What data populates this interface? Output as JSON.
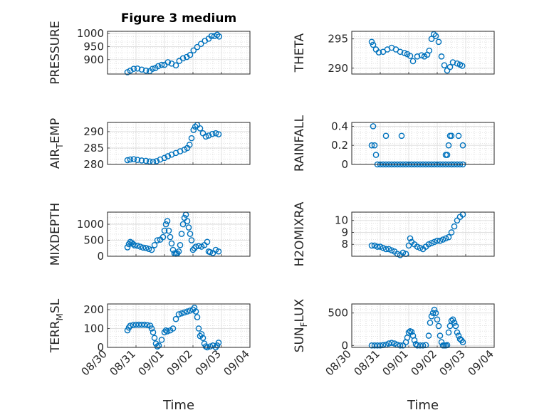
{
  "figure": {
    "title": "Figure 3 medium",
    "xlabel": "Time"
  },
  "x_ticks": [
    "08/30",
    "08/31",
    "09/01",
    "09/02",
    "09/03",
    "09/04"
  ],
  "colors": {
    "marker": "#0072bd",
    "axis": "#262626",
    "grid": "#d9d9d9"
  },
  "chart_data": [
    {
      "type": "scatter",
      "ylabel": "PRESSURE",
      "ylabel_sub": "",
      "yticks": [
        900,
        950,
        1000
      ],
      "ylim": [
        845,
        1008
      ],
      "xlim": [
        0,
        5
      ],
      "grid": "on",
      "minor_grid": "on",
      "x": [
        0.7,
        0.8,
        0.92,
        1.05,
        1.2,
        1.35,
        1.48,
        1.58,
        1.68,
        1.78,
        1.9,
        2.0,
        2.12,
        2.25,
        2.4,
        2.52,
        2.65,
        2.78,
        2.9,
        3.02,
        3.15,
        3.28,
        3.42,
        3.55,
        3.65,
        3.75,
        3.85,
        3.92
      ],
      "y": [
        852,
        858,
        865,
        866,
        862,
        858,
        856,
        865,
        868,
        875,
        880,
        880,
        890,
        885,
        878,
        895,
        905,
        910,
        918,
        935,
        948,
        960,
        972,
        980,
        990,
        990,
        995,
        988
      ]
    },
    {
      "type": "scatter",
      "ylabel": "THETA",
      "ylabel_sub": "",
      "yticks": [
        290,
        295
      ],
      "ylim": [
        289,
        296.3
      ],
      "xlim": [
        0,
        5
      ],
      "grid": "on",
      "minor_grid": "on",
      "x": [
        0.7,
        0.75,
        0.85,
        0.95,
        1.1,
        1.25,
        1.4,
        1.55,
        1.7,
        1.85,
        1.95,
        2.05,
        2.15,
        2.3,
        2.45,
        2.55,
        2.65,
        2.72,
        2.8,
        2.88,
        2.95,
        3.05,
        3.15,
        3.25,
        3.35,
        3.45,
        3.55,
        3.7,
        3.8,
        3.88
      ],
      "y": [
        294.5,
        294.0,
        293.2,
        292.7,
        292.8,
        293.2,
        293.5,
        293.2,
        292.8,
        292.6,
        292.4,
        292.1,
        291.2,
        292.0,
        292.2,
        292.0,
        292.3,
        293.0,
        295.0,
        295.8,
        295.5,
        294.5,
        292.0,
        290.5,
        289.6,
        290.2,
        291.0,
        290.8,
        290.6,
        290.4
      ]
    },
    {
      "type": "scatter",
      "ylabel": "AIR",
      "ylabel_sub": "T",
      "ylabel_rest": "EMP",
      "yticks": [
        280,
        285,
        290
      ],
      "ylim": [
        280,
        292.8
      ],
      "xlim": [
        0,
        5
      ],
      "grid": "on",
      "minor_grid": "on",
      "x": [
        0.7,
        0.8,
        0.92,
        1.05,
        1.2,
        1.35,
        1.48,
        1.6,
        1.72,
        1.85,
        2.0,
        2.12,
        2.25,
        2.4,
        2.55,
        2.7,
        2.8,
        2.88,
        2.95,
        3.02,
        3.08,
        3.15,
        3.25,
        3.35,
        3.45,
        3.55,
        3.68,
        3.8,
        3.9
      ],
      "y": [
        281.3,
        281.5,
        281.6,
        281.4,
        281.2,
        281.1,
        280.9,
        280.8,
        281.0,
        281.5,
        282.0,
        282.5,
        283.0,
        283.5,
        284.0,
        284.5,
        285.0,
        286.0,
        288.0,
        290.5,
        291.5,
        292.0,
        291.0,
        289.5,
        288.5,
        288.8,
        289.3,
        289.5,
        289.2
      ]
    },
    {
      "type": "scatter",
      "ylabel": "RAINFALL",
      "ylabel_sub": "",
      "yticks": [
        0,
        0.2,
        0.4
      ],
      "ylim": [
        0,
        0.44
      ],
      "xlim": [
        0,
        5
      ],
      "grid": "on",
      "minor_grid": "on",
      "x": [
        0.7,
        0.75,
        0.8,
        0.85,
        0.9,
        1.0,
        1.1,
        1.2,
        1.3,
        1.4,
        1.5,
        1.6,
        1.7,
        1.8,
        1.9,
        2.0,
        2.1,
        2.2,
        2.3,
        2.4,
        2.5,
        2.6,
        2.7,
        2.8,
        2.9,
        3.0,
        3.1,
        3.2,
        3.3,
        3.4,
        3.5,
        3.6,
        3.7,
        3.8,
        3.9,
        3.35,
        3.4,
        3.45,
        3.5,
        1.2,
        1.75,
        3.75,
        3.9,
        3.3
      ],
      "y": [
        0.2,
        0.4,
        0.2,
        0.1,
        0,
        0,
        0,
        0,
        0,
        0,
        0,
        0,
        0,
        0,
        0,
        0,
        0,
        0,
        0,
        0,
        0,
        0,
        0,
        0,
        0,
        0,
        0,
        0,
        0,
        0,
        0,
        0,
        0,
        0,
        0,
        0.1,
        0.2,
        0.3,
        0.3,
        0.3,
        0.3,
        0.3,
        0.2,
        0.1
      ]
    },
    {
      "type": "scatter",
      "ylabel": "MIXDEPTH",
      "ylabel_sub": "",
      "yticks": [
        0,
        500,
        1000
      ],
      "ylim": [
        0,
        1380
      ],
      "xlim": [
        0,
        5
      ],
      "grid": "on",
      "minor_grid": "on",
      "x": [
        0.7,
        0.75,
        0.8,
        0.85,
        0.9,
        0.95,
        1.05,
        1.15,
        1.25,
        1.35,
        1.45,
        1.55,
        1.65,
        1.75,
        1.85,
        1.95,
        2.0,
        2.05,
        2.1,
        2.15,
        2.2,
        2.25,
        2.3,
        2.35,
        2.4,
        2.45,
        2.5,
        2.55,
        2.6,
        2.65,
        2.7,
        2.75,
        2.8,
        2.85,
        2.9,
        2.95,
        3.0,
        3.05,
        3.1,
        3.2,
        3.3,
        3.4,
        3.5,
        3.55,
        3.6,
        3.7,
        3.8,
        3.9
      ],
      "y": [
        280,
        380,
        450,
        420,
        380,
        340,
        330,
        300,
        270,
        260,
        230,
        200,
        350,
        500,
        520,
        600,
        800,
        1000,
        1100,
        800,
        600,
        400,
        200,
        90,
        80,
        90,
        150,
        350,
        700,
        1000,
        1200,
        1300,
        1100,
        900,
        700,
        500,
        200,
        250,
        300,
        320,
        300,
        350,
        450,
        150,
        130,
        100,
        200,
        150
      ]
    },
    {
      "type": "scatter",
      "ylabel": "H2OMIXRA",
      "ylabel_sub": "",
      "yticks": [
        8,
        9,
        10
      ],
      "ylim": [
        7.0,
        10.7
      ],
      "xlim": [
        0,
        5
      ],
      "grid": "on",
      "minor_grid": "on",
      "x": [
        0.7,
        0.8,
        0.9,
        1.0,
        1.1,
        1.2,
        1.3,
        1.4,
        1.5,
        1.6,
        1.7,
        1.8,
        1.9,
        2.0,
        2.05,
        2.1,
        2.2,
        2.3,
        2.4,
        2.5,
        2.6,
        2.7,
        2.8,
        2.9,
        3.0,
        3.1,
        3.2,
        3.3,
        3.4,
        3.5,
        3.6,
        3.7,
        3.8,
        3.9
      ],
      "y": [
        7.9,
        7.9,
        7.8,
        7.8,
        7.7,
        7.6,
        7.6,
        7.5,
        7.4,
        7.2,
        7.1,
        7.3,
        7.2,
        7.9,
        8.5,
        8.2,
        8.0,
        7.8,
        7.7,
        7.6,
        7.8,
        8.0,
        8.1,
        8.2,
        8.3,
        8.3,
        8.4,
        8.5,
        8.6,
        9.0,
        9.5,
        10.0,
        10.3,
        10.5
      ]
    },
    {
      "type": "scatter",
      "ylabel": "TERR",
      "ylabel_sub": "M",
      "ylabel_rest": "SL",
      "yticks": [
        0,
        100,
        200
      ],
      "ylim": [
        0,
        230
      ],
      "xlim": [
        0,
        5
      ],
      "grid": "on",
      "minor_grid": "on",
      "x": [
        0.7,
        0.75,
        0.8,
        0.9,
        1.0,
        1.1,
        1.2,
        1.3,
        1.4,
        1.5,
        1.55,
        1.6,
        1.65,
        1.7,
        1.75,
        1.8,
        1.9,
        2.0,
        2.05,
        2.1,
        2.2,
        2.3,
        2.4,
        2.5,
        2.6,
        2.7,
        2.8,
        2.9,
        3.0,
        3.05,
        3.1,
        3.15,
        3.2,
        3.25,
        3.3,
        3.35,
        3.4,
        3.45,
        3.5,
        3.6,
        3.7,
        3.8,
        3.85,
        3.9
      ],
      "y": [
        90,
        105,
        115,
        118,
        120,
        120,
        120,
        120,
        118,
        115,
        100,
        80,
        50,
        20,
        5,
        10,
        40,
        80,
        90,
        85,
        90,
        100,
        150,
        175,
        180,
        185,
        190,
        195,
        200,
        210,
        190,
        160,
        100,
        60,
        70,
        50,
        20,
        5,
        0,
        5,
        10,
        0,
        10,
        25
      ]
    },
    {
      "type": "scatter",
      "ylabel": "SUN",
      "ylabel_sub": "F",
      "ylabel_rest": "LUX",
      "yticks": [
        0,
        500
      ],
      "ylim": [
        -30,
        640
      ],
      "xlim": [
        0,
        5
      ],
      "grid": "on",
      "minor_grid": "on",
      "x": [
        0.7,
        0.8,
        0.9,
        1.0,
        1.1,
        1.2,
        1.3,
        1.4,
        1.5,
        1.6,
        1.7,
        1.8,
        1.9,
        1.95,
        2.0,
        2.05,
        2.1,
        2.15,
        2.2,
        2.25,
        2.3,
        2.4,
        2.5,
        2.6,
        2.7,
        2.75,
        2.8,
        2.85,
        2.9,
        2.95,
        3.0,
        3.05,
        3.1,
        3.15,
        3.2,
        3.25,
        3.3,
        3.35,
        3.4,
        3.45,
        3.5,
        3.55,
        3.6,
        3.65,
        3.7,
        3.75,
        3.8,
        3.85,
        3.9
      ],
      "y": [
        0,
        0,
        0,
        0,
        5,
        10,
        30,
        40,
        30,
        10,
        0,
        0,
        50,
        120,
        200,
        220,
        210,
        150,
        80,
        20,
        0,
        0,
        0,
        5,
        150,
        350,
        450,
        500,
        550,
        500,
        400,
        300,
        150,
        50,
        0,
        0,
        0,
        5,
        200,
        300,
        380,
        400,
        350,
        300,
        200,
        150,
        100,
        80,
        50
      ]
    }
  ]
}
